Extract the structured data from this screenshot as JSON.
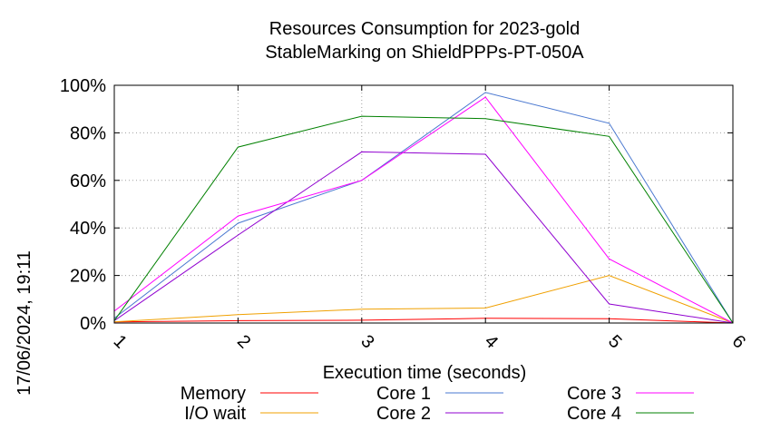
{
  "chart_data": {
    "type": "line",
    "title": [
      "Resources Consumption for 2023-gold",
      "StableMarking on ShieldPPPs-PT-050A"
    ],
    "xlabel": "Execution time (seconds)",
    "ylabel": "",
    "side_label": "17/06/2024, 19:11",
    "x": [
      1,
      2,
      3,
      4,
      5,
      6
    ],
    "xlim": [
      1,
      6
    ],
    "ylim": [
      0,
      100
    ],
    "x_ticks": [
      "1",
      "2",
      "3",
      "4",
      "5",
      "6"
    ],
    "y_ticks": [
      {
        "value": 0,
        "label": "0%"
      },
      {
        "value": 20,
        "label": "20%"
      },
      {
        "value": 40,
        "label": "40%"
      },
      {
        "value": 60,
        "label": "60%"
      },
      {
        "value": 80,
        "label": "80%"
      },
      {
        "value": 100,
        "label": "100%"
      }
    ],
    "grid": true,
    "legend_position": "bottom",
    "series": [
      {
        "name": "Memory",
        "color": "#ff0000",
        "values": [
          0.5,
          1,
          1.2,
          2,
          1.8,
          0
        ]
      },
      {
        "name": "I/O wait",
        "color": "#f0a000",
        "values": [
          0.5,
          3.5,
          5.8,
          6.3,
          20,
          0
        ]
      },
      {
        "name": "Core 1",
        "color": "#4a78d0",
        "values": [
          2,
          42,
          60,
          97,
          84,
          0
        ]
      },
      {
        "name": "Core 2",
        "color": "#9000d0",
        "values": [
          1,
          37,
          72,
          71,
          8,
          0
        ]
      },
      {
        "name": "Core 3",
        "color": "#ff00ff",
        "values": [
          5,
          45,
          60,
          95,
          27,
          0
        ]
      },
      {
        "name": "Core 4",
        "color": "#008000",
        "values": [
          1,
          74,
          87,
          86,
          78.5,
          0
        ]
      }
    ]
  }
}
